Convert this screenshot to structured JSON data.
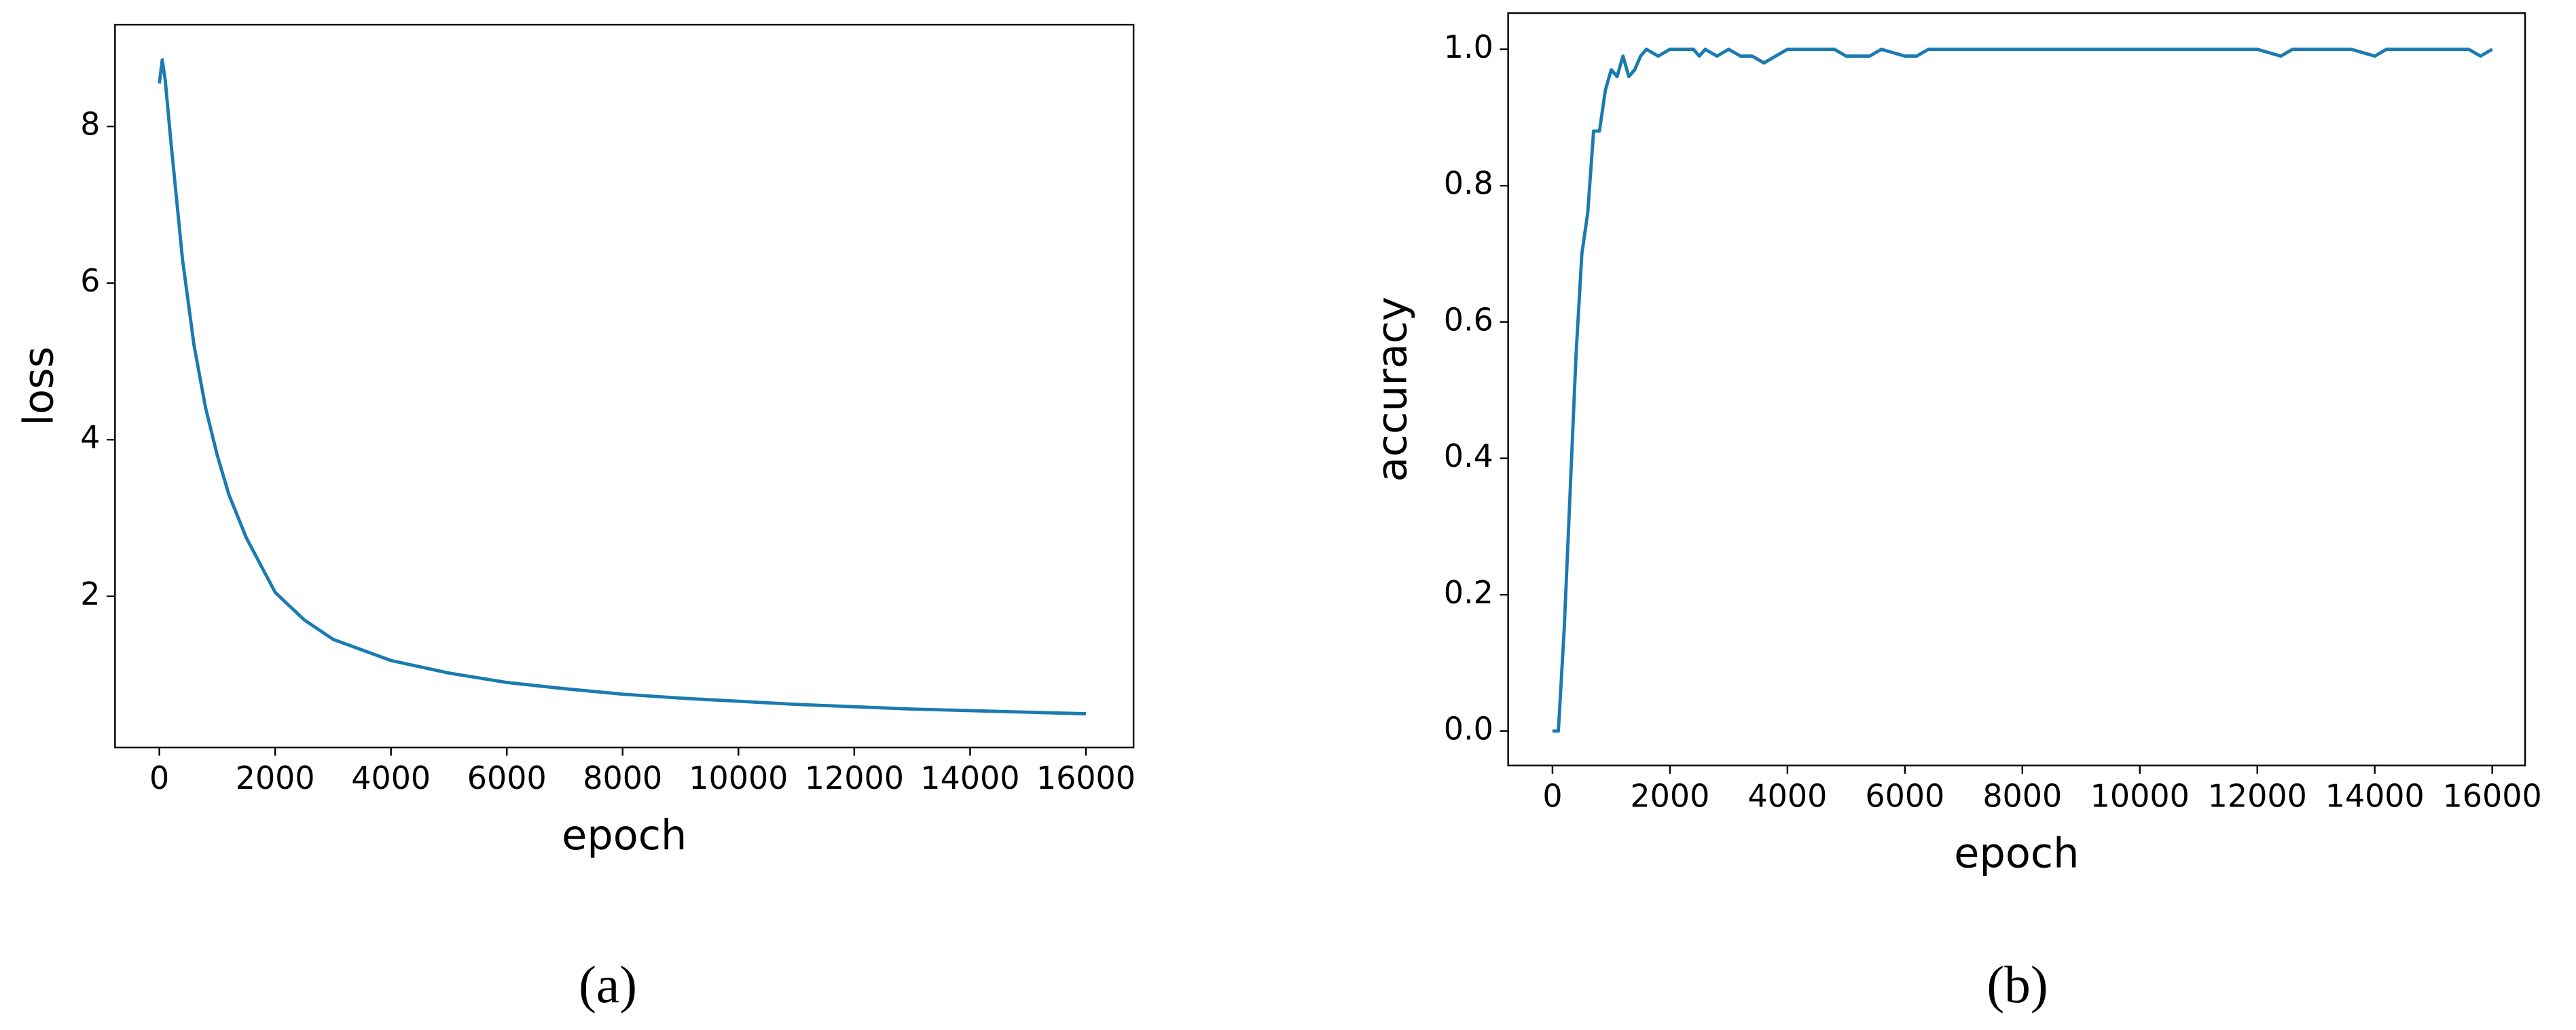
{
  "chart_data": [
    {
      "type": "line",
      "caption": "(a)",
      "xlabel": "epoch",
      "ylabel": "loss",
      "color": "#1a7bb0",
      "grid": false,
      "x": [
        0,
        50,
        100,
        200,
        400,
        600,
        800,
        1000,
        1200,
        1500,
        2000,
        2500,
        3000,
        4000,
        5000,
        6000,
        7000,
        8000,
        9000,
        10000,
        11000,
        12000,
        13000,
        14000,
        15000,
        16000
      ],
      "values": [
        8.55,
        8.85,
        8.6,
        7.8,
        6.3,
        5.2,
        4.4,
        3.8,
        3.3,
        2.75,
        2.05,
        1.7,
        1.45,
        1.18,
        1.02,
        0.9,
        0.82,
        0.75,
        0.7,
        0.66,
        0.62,
        0.59,
        0.56,
        0.54,
        0.52,
        0.5
      ],
      "xlim": [
        -766,
        16823
      ],
      "xticks": [
        0,
        2000,
        4000,
        6000,
        8000,
        10000,
        12000,
        14000,
        16000
      ],
      "ylim": [
        0.07,
        9.3
      ],
      "yticks": [
        2,
        4,
        6,
        8
      ]
    },
    {
      "type": "line",
      "caption": "(b)",
      "xlabel": "epoch",
      "ylabel": "accuracy",
      "color": "#1a7bb0",
      "grid": false,
      "x": [
        0,
        100,
        200,
        300,
        400,
        500,
        600,
        700,
        800,
        900,
        1000,
        1100,
        1200,
        1300,
        1400,
        1500,
        1600,
        1800,
        2000,
        2200,
        2400,
        2500,
        2600,
        2800,
        3000,
        3200,
        3400,
        3600,
        3800,
        4000,
        4400,
        4800,
        5000,
        5200,
        5400,
        5600,
        6000,
        6200,
        6400,
        6600,
        6800,
        7200,
        7600,
        8000,
        8400,
        8800,
        9200,
        9600,
        10000,
        10400,
        10800,
        11200,
        11600,
        12000,
        12400,
        12600,
        12800,
        13200,
        13600,
        14000,
        14200,
        14400,
        14800,
        15200,
        15600,
        15800,
        16000
      ],
      "values": [
        0,
        0,
        0.15,
        0.35,
        0.55,
        0.7,
        0.76,
        0.88,
        0.88,
        0.94,
        0.97,
        0.96,
        0.99,
        0.96,
        0.97,
        0.99,
        1.0,
        0.99,
        1.0,
        1.0,
        1.0,
        0.99,
        1.0,
        0.99,
        1.0,
        0.99,
        0.99,
        0.98,
        0.99,
        1.0,
        1.0,
        1.0,
        0.99,
        0.99,
        0.99,
        1.0,
        0.99,
        0.99,
        1.0,
        1.0,
        1.0,
        1.0,
        1.0,
        1.0,
        1.0,
        1.0,
        1.0,
        1.0,
        1.0,
        1.0,
        1.0,
        1.0,
        1.0,
        1.0,
        0.99,
        1.0,
        1.0,
        1.0,
        1.0,
        0.99,
        1.0,
        1.0,
        1.0,
        1.0,
        1.0,
        0.99,
        1.0
      ],
      "xlim": [
        -755,
        16559
      ],
      "xticks": [
        0,
        2000,
        4000,
        6000,
        8000,
        10000,
        12000,
        14000,
        16000
      ],
      "ylim": [
        -0.0506,
        1.053
      ],
      "yticks": [
        {
          "value": 0,
          "label": "0.0"
        },
        0.2,
        0.4,
        0.6,
        0.8,
        {
          "value": 1,
          "label": "1.0"
        }
      ]
    }
  ]
}
